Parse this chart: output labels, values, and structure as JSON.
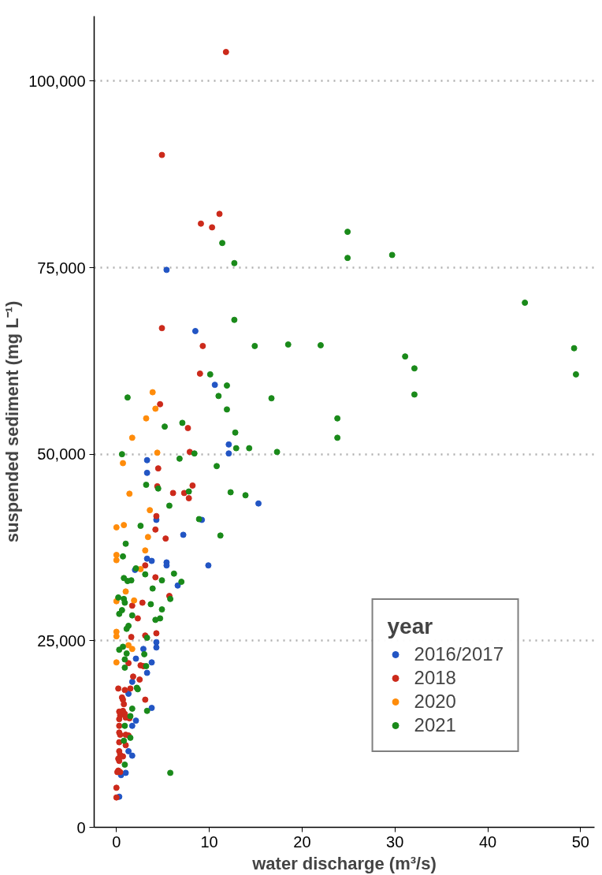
{
  "chart_data": {
    "type": "scatter",
    "xlabel": "water discharge (m³/s)",
    "ylabel": "suspended sediment (mg L⁻¹)",
    "legend_title": "year",
    "legend": "bottom right",
    "grid": "y",
    "marker": "circle",
    "xlim": [
      -2.4,
      51.5
    ],
    "ylim": [
      0,
      108700
    ],
    "xticks": [
      0,
      10,
      20,
      30,
      40,
      50
    ],
    "yticks": [
      0,
      {
        "value": 25000,
        "label": "25,000"
      },
      {
        "value": 50000,
        "label": "50,000"
      },
      {
        "value": 75000,
        "label": "75,000"
      },
      {
        "value": 100000,
        "label": "100,000"
      }
    ],
    "series": [
      {
        "name": "2016/2017",
        "color": "#2255c4",
        "x": [
          5.4,
          8.5,
          10.6,
          12.1,
          12.1,
          3.3,
          3.3,
          15.3,
          4.3,
          9.2,
          7.2,
          3.3,
          3.8,
          5.4,
          5.4,
          9.9,
          2.0,
          6.6,
          4.3,
          4.3,
          2.9,
          2.1,
          3.8,
          3.3,
          1.7,
          1.3,
          3.8,
          2.1,
          1.7,
          1.3,
          1.7,
          1.0,
          0.5,
          0.3
        ],
        "values": [
          74700,
          66500,
          59300,
          51300,
          50100,
          49200,
          47500,
          43400,
          41200,
          41200,
          39200,
          36000,
          35700,
          35500,
          35100,
          35100,
          34500,
          32400,
          24800,
          24100,
          23900,
          22600,
          22100,
          20700,
          19500,
          17900,
          16000,
          14300,
          13600,
          10200,
          9600,
          7300,
          7000,
          4100
        ]
      },
      {
        "name": "2018",
        "color": "#cc2a1b",
        "x": [
          11.8,
          9.1,
          10.3,
          11.1,
          4.9,
          4.9,
          9.3,
          9.0,
          4.7,
          7.7,
          7.9,
          4.5,
          4.4,
          8.2,
          6.1,
          7.3,
          7.8,
          4.3,
          4.2,
          5.3,
          3.1,
          4.2,
          5.7,
          2.8,
          1.7,
          2.3,
          1.6,
          3.1,
          4.3,
          1.3,
          2.6,
          2.9,
          1.8,
          2.5,
          0.2,
          0.9,
          1.5,
          0.6,
          0.7,
          3.1,
          0.8,
          0.3,
          0.7,
          0.4,
          0.9,
          0.3,
          1.0,
          1.4,
          0.3,
          0.3,
          0.4,
          1.0,
          1.3,
          0.3,
          1.0,
          0.3,
          0.4,
          0.7,
          0.2,
          0.3,
          0.2,
          0.4,
          0.1,
          0.0,
          0.0
        ],
        "values": [
          103900,
          80900,
          80400,
          82200,
          90100,
          66900,
          64500,
          60800,
          56700,
          53500,
          50300,
          48100,
          45700,
          45800,
          44800,
          44800,
          44100,
          41700,
          39900,
          38700,
          35100,
          33500,
          31000,
          30100,
          29700,
          28000,
          25500,
          25700,
          26000,
          22000,
          21700,
          21600,
          20200,
          19800,
          18600,
          18400,
          18600,
          17400,
          17100,
          17100,
          16500,
          15500,
          15600,
          15000,
          15200,
          14500,
          14700,
          14600,
          13600,
          12700,
          12400,
          12400,
          12300,
          11400,
          11000,
          10200,
          9700,
          9500,
          9200,
          8900,
          7600,
          7400,
          7400,
          5300,
          4000
        ]
      },
      {
        "name": "2020",
        "color": "#ff8c0a",
        "x": [
          3.9,
          4.2,
          3.2,
          1.7,
          4.4,
          0.7,
          1.4,
          3.6,
          0.0,
          0.8,
          3.4,
          3.1,
          0.0,
          0.0,
          2.6,
          1.0,
          0.0,
          1.9,
          0.0,
          0.0,
          1.3,
          1.7,
          0.0
        ],
        "values": [
          58300,
          56100,
          54800,
          52200,
          50200,
          48800,
          44700,
          42500,
          40200,
          40500,
          38900,
          37100,
          36500,
          35800,
          34600,
          31600,
          30300,
          30400,
          26200,
          25600,
          24400,
          23900,
          22100
        ]
      },
      {
        "name": "2021",
        "color": "#1a8a1a",
        "x": [
          12.7,
          14.9,
          10.1,
          11.9,
          1.2,
          11.0,
          11.9,
          5.2,
          7.1,
          12.8,
          12.9,
          0.6,
          8.4,
          6.8,
          10.8,
          3.2,
          4.5,
          7.8,
          12.3,
          13.9,
          5.7,
          8.9,
          2.6,
          11.2,
          1.0,
          0.7,
          2.1,
          3.1,
          0.8,
          1.2,
          1.6,
          4.9,
          6.2,
          7.0,
          3.9,
          0.2,
          0.8,
          0.9,
          5.8,
          3.7,
          4.9,
          0.6,
          0.3,
          1.7,
          4.2,
          4.7,
          1.3,
          1.1,
          3.3,
          0.3,
          0.7,
          1.1,
          3.0,
          0.9,
          0.9,
          3.2,
          2.2,
          2.3,
          1.7,
          3.3,
          1.5,
          0.9,
          1.5,
          0.8,
          0.9,
          5.8,
          11.4,
          12.7,
          24.9,
          24.9,
          29.7,
          18.5,
          22.0,
          16.7,
          23.8,
          23.8,
          14.3,
          17.3,
          31.1,
          32.1,
          32.1,
          44.0,
          49.3,
          49.5
        ],
        "values": [
          68000,
          64500,
          60700,
          59200,
          57600,
          57800,
          56000,
          53700,
          54200,
          52900,
          50800,
          50000,
          50100,
          49400,
          48400,
          45900,
          45400,
          45000,
          44900,
          44500,
          43100,
          41300,
          40400,
          39100,
          38000,
          36300,
          34700,
          33900,
          33400,
          33000,
          33100,
          33100,
          34000,
          32900,
          32000,
          30800,
          30600,
          30100,
          30600,
          29900,
          29200,
          29100,
          28600,
          28400,
          27800,
          28000,
          27000,
          26600,
          25400,
          23800,
          24200,
          23300,
          23200,
          22500,
          21400,
          21600,
          18700,
          18500,
          15900,
          15600,
          14900,
          13600,
          12000,
          11600,
          8400,
          7300,
          78300,
          75600,
          79800,
          76300,
          76700,
          64700,
          64600,
          57500,
          54800,
          52200,
          50800,
          50300,
          63100,
          61500,
          58000,
          70300,
          64200,
          60700
        ]
      }
    ]
  }
}
